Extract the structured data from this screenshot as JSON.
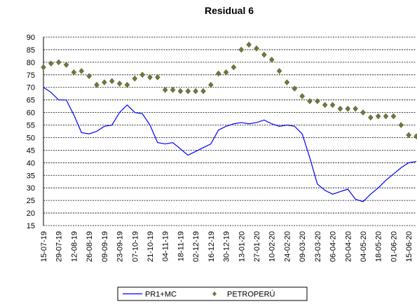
{
  "chart_data": {
    "type": "line",
    "title": "Residual 6",
    "categories": [
      "15-07-19",
      null,
      "29-07-19",
      null,
      "12-08-19",
      null,
      "26-08-19",
      null,
      "09-09-19",
      null,
      "23-09-19",
      null,
      "07-10-19",
      null,
      "21-10-19",
      null,
      "04-11-19",
      null,
      "18-11-19",
      null,
      "02-12-19",
      null,
      "16-12-19",
      null,
      "30-12-19",
      null,
      "13-01-20",
      null,
      "27-01-20",
      null,
      "10-02-20",
      null,
      "24-02-20",
      null,
      "09-03-20",
      null,
      "23-03-20",
      null,
      "06-04-20",
      null,
      "20-04-20",
      null,
      "04-05-20",
      null,
      "18-05-20",
      null,
      "01-06-20",
      null,
      "15-06-20",
      null
    ],
    "series": [
      {
        "name": "PR1+MC",
        "color": "#0000ff",
        "style": "line",
        "values": [
          70,
          68,
          65,
          65,
          59,
          52,
          51.5,
          52.5,
          54.5,
          55,
          60,
          63,
          60,
          59.5,
          55,
          48,
          47.5,
          48,
          45.5,
          43,
          44.5,
          46,
          47.5,
          53,
          54.5,
          55.5,
          56,
          55.5,
          56,
          57,
          55.5,
          54.5,
          55,
          54.5,
          51.5,
          42,
          31.5,
          29,
          27.5,
          28.5,
          29.5,
          25.5,
          24.5,
          27.5,
          30,
          33,
          35.5,
          38,
          40,
          40.5
        ]
      },
      {
        "name": "PETROPERÚ",
        "color": "#6b7a3a",
        "style": "marker",
        "values": [
          78,
          79.5,
          80,
          79,
          76,
          76.5,
          74.5,
          71,
          72,
          72.5,
          71.5,
          71,
          73.5,
          75,
          74,
          74,
          69,
          69,
          68.5,
          68.5,
          68.5,
          68.5,
          71,
          75.5,
          76,
          78,
          85,
          87,
          85.5,
          83,
          81,
          76.5,
          72,
          69.5,
          66.5,
          64.5,
          64.5,
          63,
          63,
          61.5,
          61.5,
          61.5,
          60,
          58,
          58.5,
          58.5,
          58.5,
          55,
          51,
          50.5
        ]
      }
    ],
    "ylim": [
      15,
      90
    ],
    "yticks": [
      15,
      20,
      25,
      30,
      35,
      40,
      45,
      50,
      55,
      60,
      65,
      70,
      75,
      80,
      85,
      90
    ],
    "grid": true,
    "legend": "bottom"
  }
}
